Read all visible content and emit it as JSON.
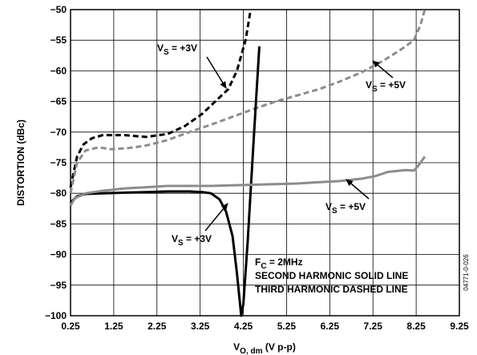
{
  "chart_data": {
    "type": "line",
    "xlabel": "V",
    "xlabel_sub": "O, dm",
    "xlabel_suffix": " (V p-p)",
    "ylabel": "DISTORTION (dBc)",
    "xlim": [
      0.25,
      9.25
    ],
    "ylim": [
      -100,
      -50
    ],
    "x_ticks": [
      0.25,
      1.25,
      2.25,
      3.25,
      4.25,
      5.25,
      6.25,
      7.25,
      8.25,
      9.25
    ],
    "x_tick_labels": [
      "0.25",
      "1.25",
      "2.25",
      "3.25",
      "4.25",
      "5.25",
      "6.25",
      "7.25",
      "8.25",
      "9.25"
    ],
    "y_ticks": [
      -50,
      -55,
      -60,
      -65,
      -70,
      -75,
      -80,
      -85,
      -90,
      -95,
      -100
    ],
    "y_tick_labels": [
      "−50",
      "−55",
      "−60",
      "−65",
      "−70",
      "−75",
      "−80",
      "−85",
      "−90",
      "−95",
      "−100"
    ],
    "grid": true,
    "notes": [
      {
        "main": "F",
        "sub": "C",
        "rest": " = 2MHz"
      },
      {
        "main": "SECOND HARMONIC SOLID LINE",
        "sub": "",
        "rest": ""
      },
      {
        "main": "THIRD HARMONIC DASHED LINE",
        "sub": "",
        "rest": ""
      }
    ],
    "figure_id": "04771-0-026",
    "series": [
      {
        "key": "hd3_3v",
        "color": "#000000",
        "style": "dashed",
        "points": [
          [
            0.25,
            -79
          ],
          [
            0.4,
            -74
          ],
          [
            0.55,
            -72
          ],
          [
            0.75,
            -71
          ],
          [
            1.0,
            -70.5
          ],
          [
            1.5,
            -70.5
          ],
          [
            2.0,
            -70.8
          ],
          [
            2.5,
            -70.3
          ],
          [
            2.9,
            -69
          ],
          [
            3.3,
            -67
          ],
          [
            3.6,
            -65
          ],
          [
            3.9,
            -63
          ],
          [
            4.1,
            -60
          ],
          [
            4.3,
            -55
          ],
          [
            4.42,
            -50
          ]
        ]
      },
      {
        "key": "hd3_5v",
        "color": "#8c8c8c",
        "style": "dashed",
        "points": [
          [
            0.25,
            -80
          ],
          [
            0.4,
            -75
          ],
          [
            0.6,
            -73
          ],
          [
            0.9,
            -72.5
          ],
          [
            1.2,
            -72.8
          ],
          [
            1.6,
            -72.6
          ],
          [
            2.0,
            -72.2
          ],
          [
            2.5,
            -71.3
          ],
          [
            3.0,
            -70
          ],
          [
            3.5,
            -68.8
          ],
          [
            4.0,
            -67.5
          ],
          [
            4.5,
            -66.2
          ],
          [
            5.0,
            -65
          ],
          [
            5.5,
            -64
          ],
          [
            6.0,
            -63
          ],
          [
            6.5,
            -61.7
          ],
          [
            7.0,
            -60.2
          ],
          [
            7.5,
            -58.3
          ],
          [
            7.9,
            -56.5
          ],
          [
            8.2,
            -55
          ],
          [
            8.35,
            -52.5
          ],
          [
            8.45,
            -50
          ]
        ]
      },
      {
        "key": "hd2_3v",
        "color": "#000000",
        "style": "solid",
        "points": [
          [
            0.25,
            -81.5
          ],
          [
            0.4,
            -80.5
          ],
          [
            0.6,
            -80.1
          ],
          [
            1.0,
            -80
          ],
          [
            1.5,
            -79.9
          ],
          [
            2.0,
            -79.8
          ],
          [
            2.5,
            -79.7
          ],
          [
            3.0,
            -79.7
          ],
          [
            3.3,
            -79.8
          ],
          [
            3.5,
            -80
          ],
          [
            3.7,
            -81
          ],
          [
            3.85,
            -83
          ],
          [
            4.0,
            -87
          ],
          [
            4.1,
            -93
          ],
          [
            4.2,
            -100
          ],
          [
            4.25,
            -98
          ],
          [
            4.35,
            -88
          ],
          [
            4.5,
            -70
          ],
          [
            4.62,
            -56
          ]
        ]
      },
      {
        "key": "hd2_5v",
        "color": "#8c8c8c",
        "style": "solid",
        "points": [
          [
            0.25,
            -82
          ],
          [
            0.35,
            -80.8
          ],
          [
            0.6,
            -80
          ],
          [
            1.0,
            -79.6
          ],
          [
            1.5,
            -79.2
          ],
          [
            2.0,
            -79
          ],
          [
            2.5,
            -78.8
          ],
          [
            3.0,
            -78.8
          ],
          [
            3.5,
            -78.8
          ],
          [
            4.0,
            -78.7
          ],
          [
            4.5,
            -78.6
          ],
          [
            5.0,
            -78.5
          ],
          [
            5.5,
            -78.4
          ],
          [
            6.0,
            -78.2
          ],
          [
            6.5,
            -78
          ],
          [
            7.0,
            -77.6
          ],
          [
            7.3,
            -77.2
          ],
          [
            7.6,
            -76.5
          ],
          [
            8.0,
            -76.2
          ],
          [
            8.2,
            -76.3
          ],
          [
            8.3,
            -75.5
          ],
          [
            8.45,
            -74
          ]
        ]
      }
    ],
    "labels": [
      {
        "text": "V",
        "sub": "S",
        "rest": " = +3V",
        "series": "hd3_3v"
      },
      {
        "text": "V",
        "sub": "S",
        "rest": " = +5V",
        "series": "hd3_5v"
      },
      {
        "text": "V",
        "sub": "S",
        "rest": " = +5V",
        "series": "hd2_5v"
      },
      {
        "text": "V",
        "sub": "S",
        "rest": " = +3V",
        "series": "hd2_3v"
      }
    ]
  }
}
